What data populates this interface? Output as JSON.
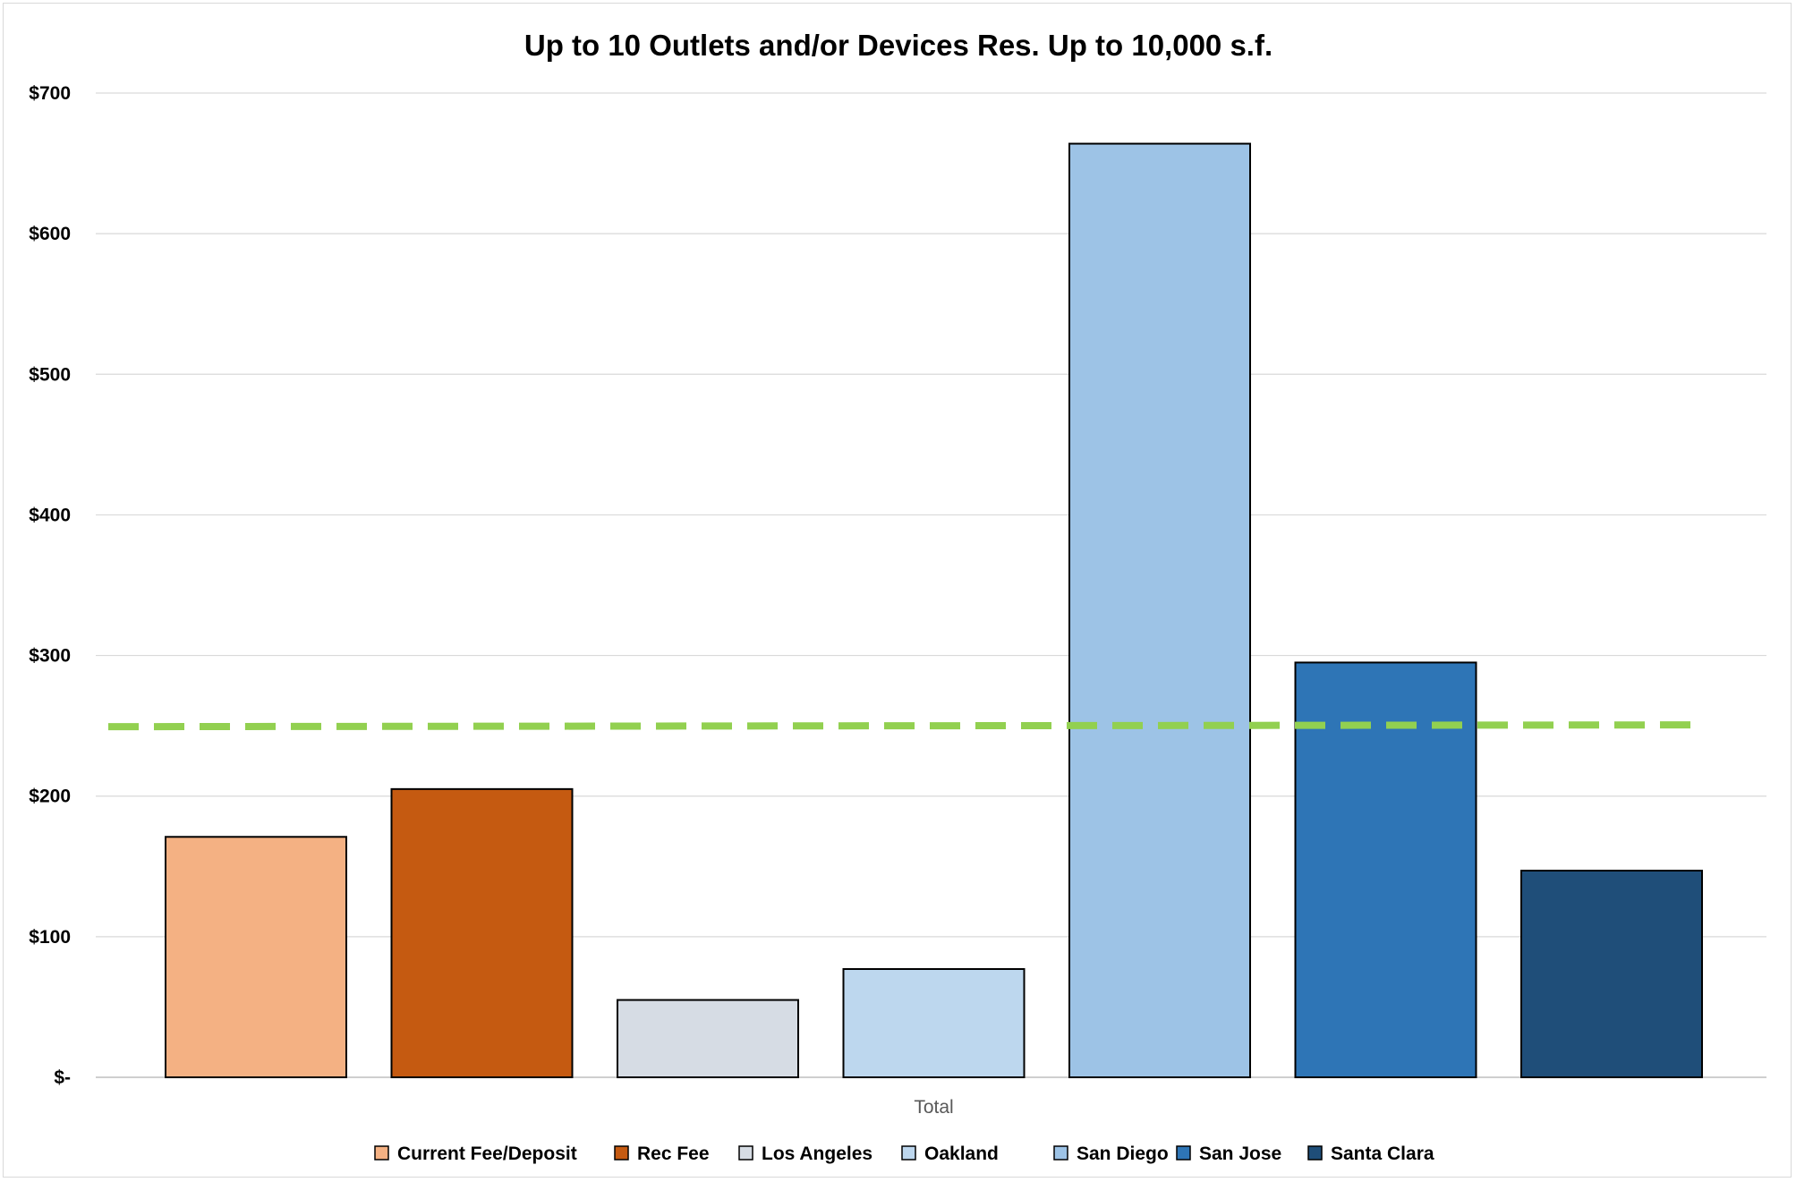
{
  "chart_data": {
    "type": "bar",
    "title": "Up to 10 Outlets and/or Devices Res. Up to 10,000 s.f.",
    "xlabel": "",
    "ylabel": "",
    "categories": [
      "Total"
    ],
    "ylim": [
      0,
      700
    ],
    "y_ticks": [
      0,
      100,
      200,
      300,
      400,
      500,
      600,
      700
    ],
    "y_tick_labels": [
      "$-",
      "$100",
      "$200",
      "$300",
      "$400",
      "$500",
      "$600",
      "$700"
    ],
    "grid": true,
    "legend_position": "bottom",
    "series": [
      {
        "name": "Current Fee/Deposit",
        "values": [
          171
        ],
        "color": "#F4B183"
      },
      {
        "name": "Rec Fee",
        "values": [
          205
        ],
        "color": "#C55A11"
      },
      {
        "name": "Los Angeles",
        "values": [
          55
        ],
        "color": "#D6DCE4"
      },
      {
        "name": "Oakland",
        "values": [
          77
        ],
        "color": "#BDD7EE"
      },
      {
        "name": "San Diego",
        "values": [
          664
        ],
        "color": "#9DC3E6"
      },
      {
        "name": "San Jose",
        "values": [
          295
        ],
        "color": "#2E75B6"
      },
      {
        "name": "Santa Clara",
        "values": [
          147
        ],
        "color": "#1F4E79"
      }
    ],
    "reference_line": {
      "value": 250,
      "color": "#92D050",
      "style": "dashed"
    }
  }
}
